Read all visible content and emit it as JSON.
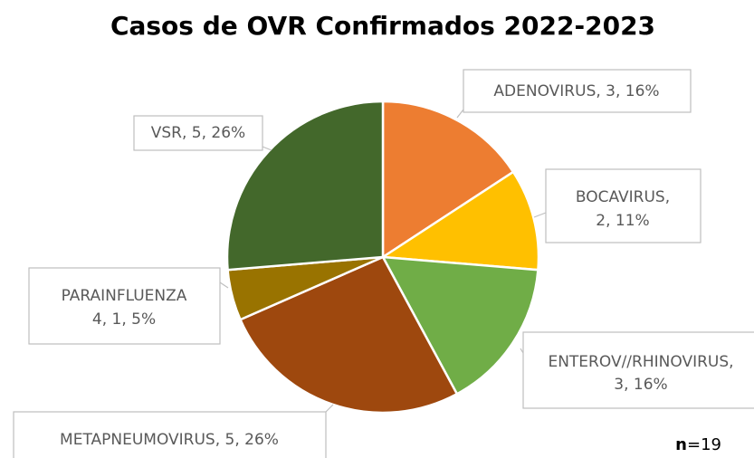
{
  "chart_data": {
    "type": "pie",
    "title": "Casos de OVR Confirmados 2022-2023",
    "values": [
      3,
      2,
      3,
      5,
      1,
      5
    ],
    "value_labels": [
      [
        "ADENOVIRUS, 3, 16%"
      ],
      [
        "BOCAVIRUS,",
        "2, 11%"
      ],
      [
        "ENTEROV//RHINOVIRUS,",
        "3, 16%"
      ],
      [
        "METAPNEUMOVIRUS, 5, 26%"
      ],
      [
        "PARAINFLUENZA",
        "4, 1, 5%"
      ],
      [
        "VSR, 5, 26%"
      ]
    ],
    "colors": [
      "#ed7d31",
      "#ffc000",
      "#70ad47",
      "#9e480e",
      "#997300",
      "#43682b"
    ],
    "note": {
      "bold": "n",
      "text": "=19"
    }
  }
}
